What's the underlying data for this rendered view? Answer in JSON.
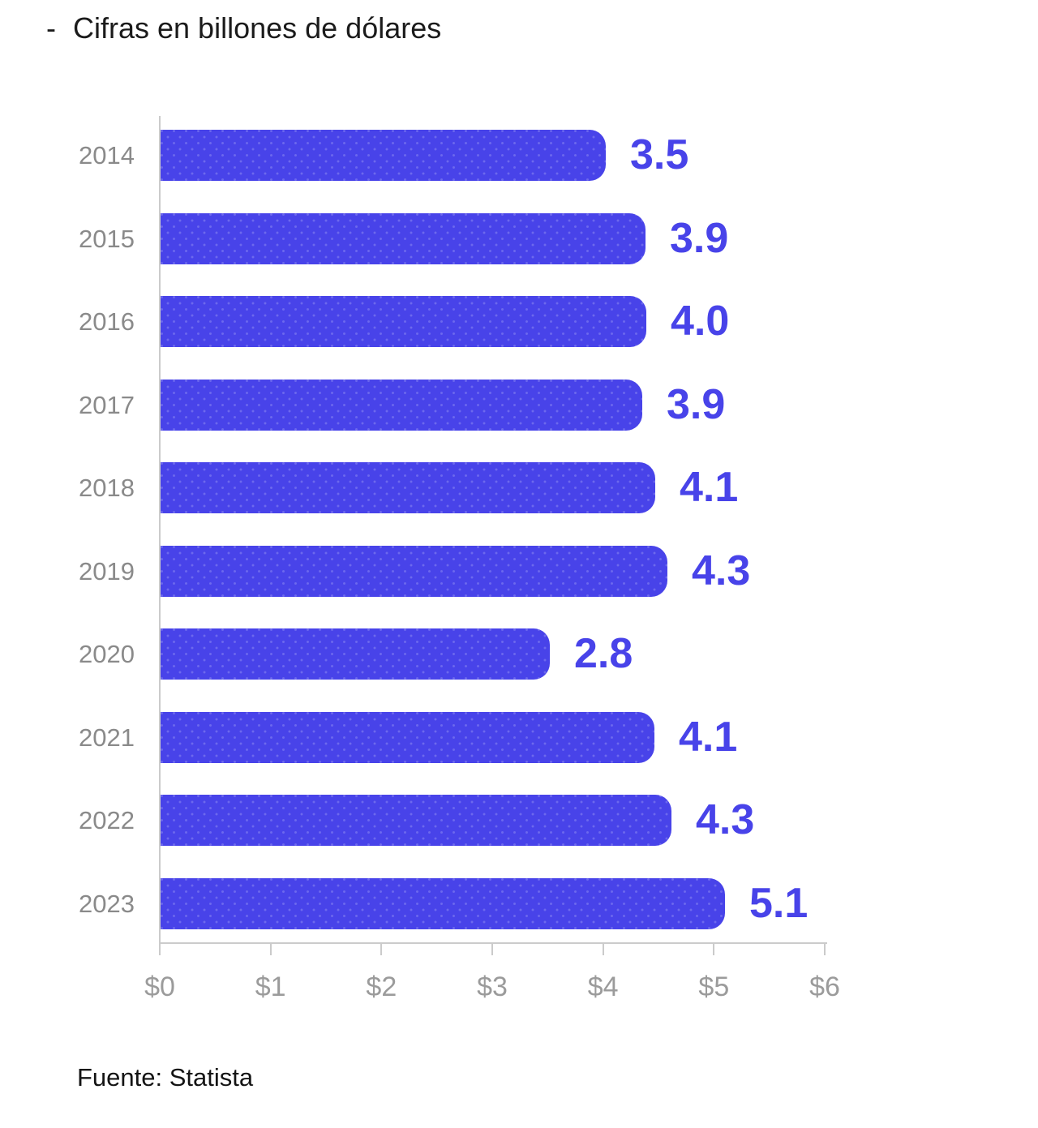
{
  "title": {
    "bullet": "-",
    "text": "Cifras en billones de dólares"
  },
  "source": "Fuente: Statista",
  "chart_data": {
    "type": "bar",
    "orientation": "horizontal",
    "title": "Cifras en billones de dólares",
    "xlabel": "",
    "ylabel": "",
    "categories": [
      "2014",
      "2015",
      "2016",
      "2017",
      "2018",
      "2019",
      "2020",
      "2021",
      "2022",
      "2023"
    ],
    "values": [
      3.5,
      3.9,
      4.0,
      3.9,
      4.1,
      4.3,
      2.8,
      4.1,
      4.3,
      5.1
    ],
    "value_labels": [
      "3.5",
      "3.9",
      "4.0",
      "3.9",
      "4.1",
      "4.3",
      "2.8",
      "4.1",
      "4.3",
      "5.1"
    ],
    "x_axis": {
      "min": 0,
      "max": 6,
      "tick_labels": [
        "$0",
        "$1",
        "$2",
        "$3",
        "$4",
        "$5",
        "$6"
      ]
    },
    "grid": false,
    "legend": "none",
    "layout_hints": {
      "bar_end_fractions": [
        0.67,
        0.729,
        0.73,
        0.724,
        0.744,
        0.762,
        0.585,
        0.743,
        0.768,
        0.849
      ]
    },
    "colors": {
      "bar": "#4843e9",
      "value_label": "#4843e9",
      "category_label": "#8a8a8a",
      "axis_tick_label": "#9b9b9b",
      "axis_line": "#cbcbcb",
      "title_text": "#1b1b1b",
      "source_text": "#141414",
      "background": "#ffffff"
    }
  }
}
